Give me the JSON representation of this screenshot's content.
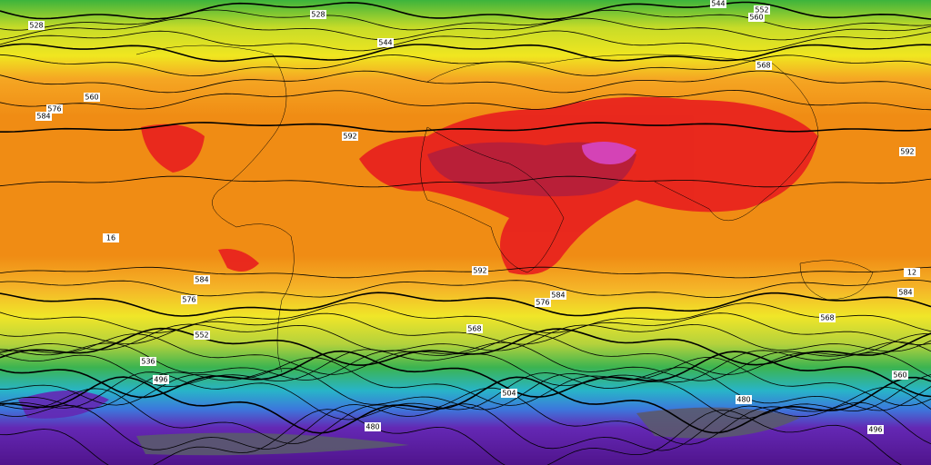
{
  "contour_labels": [
    "528",
    "544",
    "552",
    "560",
    "528",
    "544",
    "560",
    "568",
    "576",
    "584",
    "592",
    "592",
    "16",
    "592",
    "584",
    "576",
    "584",
    "576",
    "568",
    "568",
    "584",
    "12",
    "552",
    "560",
    "536",
    "496",
    "504",
    "480",
    "480",
    "496"
  ]
}
